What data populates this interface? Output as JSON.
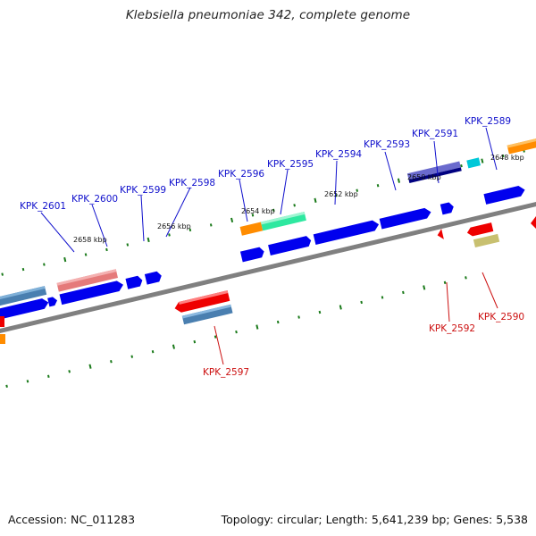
{
  "header": {
    "title": "Klebsiella pneumoniae 342, complete genome"
  },
  "footer": {
    "accession": "Accession: NC_011283",
    "summary": "Topology: circular; Length: 5,641,239 bp; Genes: 5,538"
  },
  "scale_labels": [
    "2658 kbp",
    "2656 kbp",
    "2654 kbp",
    "2652 kbp",
    "2650 kbp",
    "2648 kbp"
  ],
  "gene_labels": {
    "forward": [
      "KPK_2601",
      "KPK_2600",
      "KPK_2599",
      "KPK_2598",
      "KPK_2596",
      "KPK_2595",
      "KPK_2594",
      "KPK_2593",
      "KPK_2591",
      "KPK_2589"
    ],
    "reverse": [
      "KPK_2597",
      "KPK_2592",
      "KPK_2590"
    ]
  },
  "colors": {
    "forward_label": "#1010cc",
    "reverse_label": "#cc1010",
    "forward_gene": "#0000ee",
    "reverse_gene": "#ee0000",
    "backbone": "#808080",
    "tick": "#1a7a1a"
  }
}
